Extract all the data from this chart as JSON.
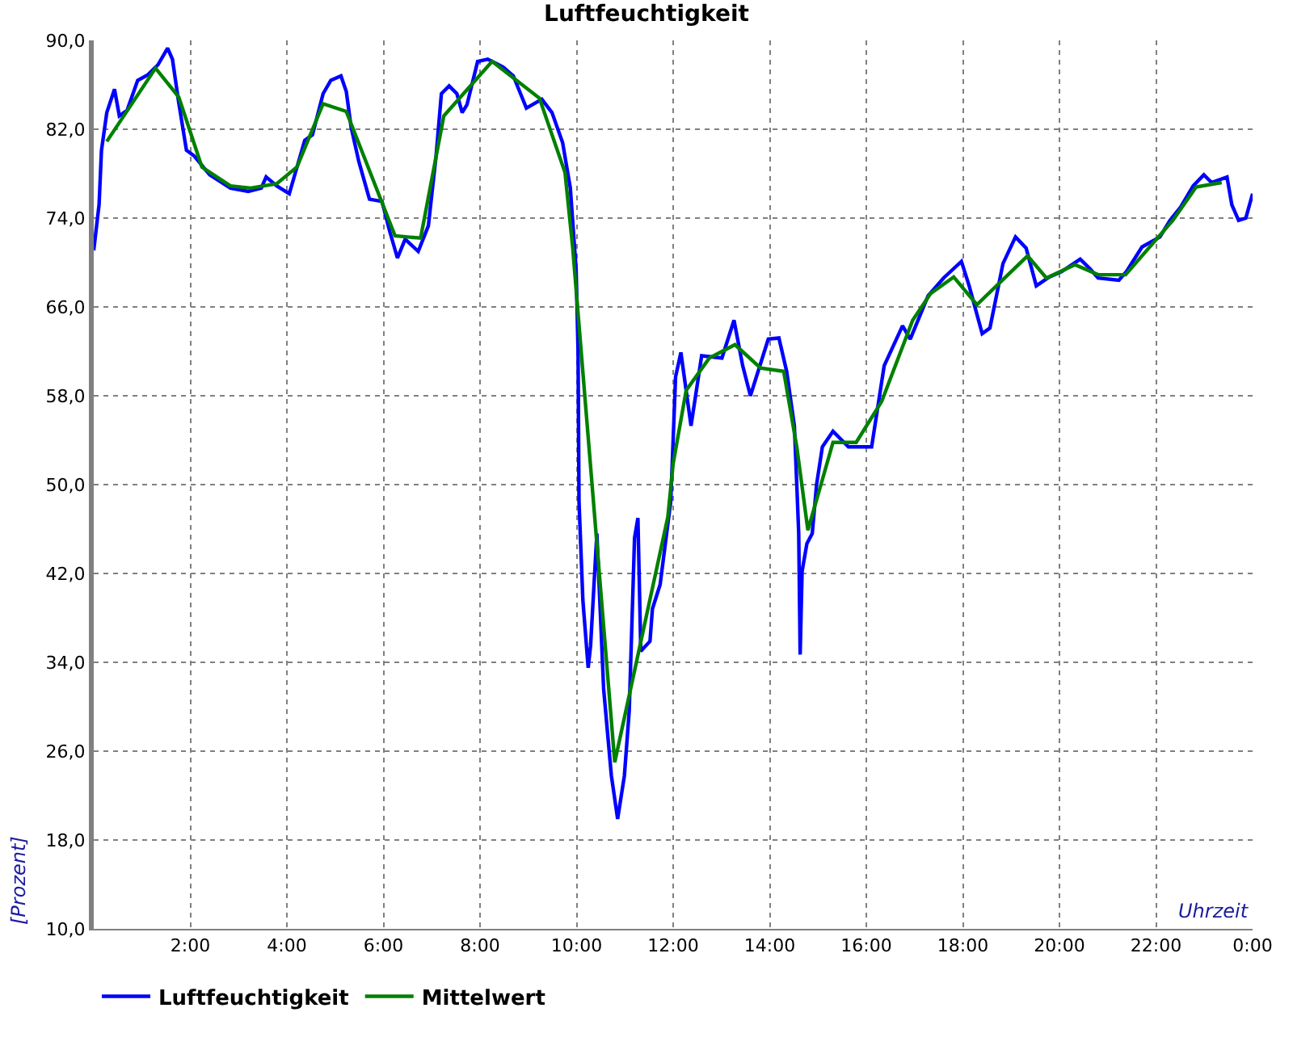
{
  "chart_data": {
    "type": "line",
    "title": "Luftfeuchtigkeit",
    "xlabel": "Uhrzeit",
    "ylabel": "[Prozent]",
    "xlim": [
      0,
      24
    ],
    "xticks": [
      {
        "value": 0,
        "label": null
      },
      {
        "value": 2,
        "label": "2:00"
      },
      {
        "value": 4,
        "label": "4:00"
      },
      {
        "value": 6,
        "label": "6:00"
      },
      {
        "value": 8,
        "label": "8:00"
      },
      {
        "value": 10,
        "label": "10:00"
      },
      {
        "value": 12,
        "label": "12:00"
      },
      {
        "value": 14,
        "label": "14:00"
      },
      {
        "value": 16,
        "label": "16:00"
      },
      {
        "value": 18,
        "label": "18:00"
      },
      {
        "value": 20,
        "label": "20:00"
      },
      {
        "value": 22,
        "label": "22:00"
      },
      {
        "value": 24,
        "label": "0:00"
      }
    ],
    "ylim": [
      10,
      90
    ],
    "yticks": [
      {
        "value": 10,
        "label": "10,0"
      },
      {
        "value": 18,
        "label": "18,0"
      },
      {
        "value": 26,
        "label": "26,0"
      },
      {
        "value": 34,
        "label": "34,0"
      },
      {
        "value": 42,
        "label": "42,0"
      },
      {
        "value": 50,
        "label": "50,0"
      },
      {
        "value": 58,
        "label": "58,0"
      },
      {
        "value": 66,
        "label": "66,0"
      },
      {
        "value": 74,
        "label": "74,0"
      },
      {
        "value": 82,
        "label": "82,0"
      },
      {
        "value": 90,
        "label": "90,0"
      }
    ],
    "grid": true,
    "legend": "bottom",
    "marker": "none",
    "line_style": "solid",
    "series": [
      {
        "name": "Luftfeuchtigkeit",
        "color": "#0000ff",
        "x": [
          0,
          0.11,
          0.16,
          0.27,
          0.43,
          0.53,
          0.69,
          0.91,
          1.12,
          1.33,
          1.53,
          1.63,
          1.76,
          1.92,
          2.08,
          2.4,
          2.83,
          3.2,
          3.47,
          3.57,
          3.79,
          4.05,
          4.37,
          4.53,
          4.75,
          4.91,
          5.12,
          5.23,
          5.33,
          5.49,
          5.71,
          5.97,
          6.13,
          6.29,
          6.45,
          6.72,
          6.93,
          7.09,
          7.2,
          7.36,
          7.52,
          7.63,
          7.73,
          7.95,
          8.16,
          8.48,
          8.69,
          8.96,
          9.28,
          9.49,
          9.71,
          9.87,
          9.99,
          10.03,
          10.05,
          10.13,
          10.24,
          10.29,
          10.42,
          10.56,
          10.72,
          10.85,
          10.99,
          11.09,
          11.2,
          11.27,
          11.33,
          11.52,
          11.57,
          11.73,
          11.95,
          12.05,
          12.16,
          12.37,
          12.59,
          13.01,
          13.26,
          13.44,
          13.6,
          13.97,
          14.19,
          14.35,
          14.51,
          14.56,
          14.6,
          14.63,
          14.67,
          14.77,
          14.88,
          14.97,
          15.09,
          15.31,
          15.63,
          16.11,
          16.37,
          16.75,
          16.91,
          17.28,
          17.6,
          17.97,
          18.13,
          18.4,
          18.56,
          18.83,
          19.09,
          19.31,
          19.52,
          19.79,
          20.05,
          20.43,
          20.64,
          20.8,
          21.23,
          21.39,
          21.71,
          22.08,
          22.29,
          22.51,
          22.77,
          22.99,
          23.15,
          23.47,
          23.57,
          23.71,
          23.86,
          24
        ],
        "values": [
          71.1,
          75.2,
          80.1,
          83.5,
          85.6,
          83.2,
          83.7,
          86.4,
          86.9,
          87.8,
          89.3,
          88.3,
          84.4,
          80.1,
          79.6,
          77.9,
          76.7,
          76.4,
          76.7,
          77.7,
          76.9,
          76.2,
          81.0,
          81.5,
          85.2,
          86.4,
          86.8,
          85.4,
          82.2,
          79.1,
          75.7,
          75.5,
          72.8,
          70.4,
          72.1,
          71.0,
          73.3,
          79.6,
          85.2,
          85.9,
          85.2,
          83.5,
          84.2,
          88.1,
          88.3,
          87.6,
          86.8,
          83.9,
          84.7,
          83.5,
          80.8,
          76.7,
          69.4,
          62.1,
          48.5,
          39.6,
          33.5,
          35.5,
          45.6,
          31.6,
          23.8,
          19.9,
          23.8,
          29.6,
          45.2,
          47.0,
          35.0,
          35.9,
          38.8,
          41.0,
          48.5,
          59.7,
          61.9,
          55.3,
          61.6,
          61.4,
          64.8,
          60.7,
          58.0,
          63.1,
          63.2,
          60.2,
          55.3,
          50.0,
          45.6,
          34.7,
          42.2,
          44.7,
          45.6,
          50.0,
          53.4,
          54.8,
          53.4,
          53.4,
          60.7,
          64.3,
          63.1,
          67.0,
          68.6,
          70.1,
          67.9,
          63.6,
          64.1,
          69.9,
          72.3,
          71.3,
          67.9,
          68.7,
          69.2,
          70.3,
          69.4,
          68.6,
          68.4,
          69.2,
          71.4,
          72.3,
          73.8,
          75.0,
          76.9,
          77.9,
          77.2,
          77.7,
          75.2,
          73.8,
          74.0,
          76.2
        ]
      },
      {
        "name": "Mittelwert",
        "color": "#008000",
        "x": [
          0.27,
          1.28,
          1.76,
          2.24,
          2.83,
          3.25,
          3.79,
          4.21,
          4.75,
          5.23,
          6.24,
          6.77,
          7.25,
          8.25,
          9.23,
          9.76,
          9.92,
          10.79,
          11.89,
          12.0,
          12.27,
          12.75,
          13.28,
          13.81,
          14.29,
          14.56,
          14.79,
          15.31,
          15.79,
          16.32,
          16.96,
          17.33,
          17.81,
          18.29,
          19.34,
          19.73,
          20.32,
          20.8,
          21.37,
          22.35,
          22.83,
          23.36
        ],
        "values": [
          80.9,
          87.5,
          84.9,
          78.6,
          76.9,
          76.7,
          77.1,
          78.6,
          84.3,
          83.6,
          72.4,
          72.2,
          83.2,
          88.1,
          84.8,
          78.1,
          71.3,
          25.0,
          47.1,
          51.9,
          58.5,
          61.4,
          62.6,
          60.5,
          60.2,
          53.4,
          45.9,
          53.8,
          53.8,
          57.5,
          64.8,
          67.2,
          68.7,
          66.2,
          70.6,
          68.6,
          69.8,
          68.9,
          68.9,
          73.8,
          76.8,
          77.2
        ]
      }
    ]
  }
}
